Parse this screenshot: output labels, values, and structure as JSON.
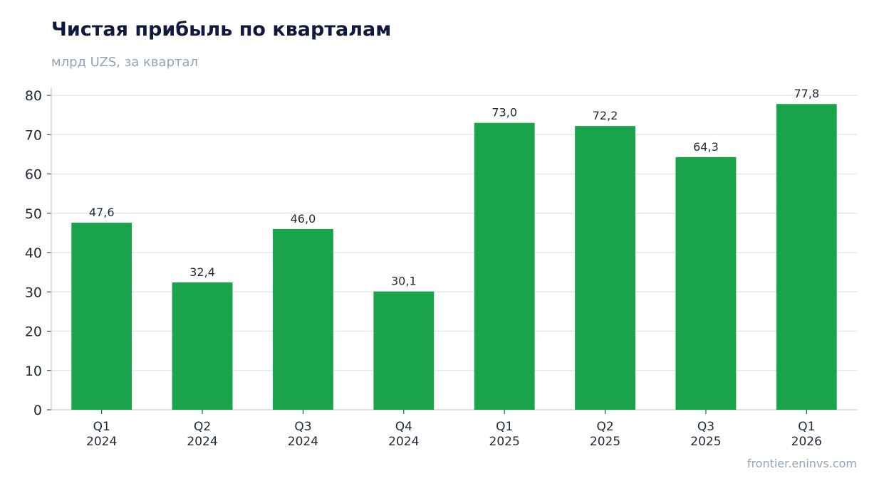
{
  "chart_data": {
    "type": "bar",
    "title": "Чистая прибыль по кварталам",
    "subtitle": "млрд UZS, за квартал",
    "categories": [
      [
        "Q1",
        "2024"
      ],
      [
        "Q2",
        "2024"
      ],
      [
        "Q3",
        "2024"
      ],
      [
        "Q4",
        "2024"
      ],
      [
        "Q1",
        "2025"
      ],
      [
        "Q2",
        "2025"
      ],
      [
        "Q3",
        "2025"
      ],
      [
        "Q1",
        "2026"
      ]
    ],
    "values": [
      47.6,
      32.4,
      46.0,
      30.1,
      73.0,
      72.2,
      64.3,
      77.8
    ],
    "value_labels": [
      "47,6",
      "32,4",
      "46,0",
      "30,1",
      "73,0",
      "72,2",
      "64,3",
      "77,8"
    ],
    "yticks": [
      0,
      10,
      20,
      30,
      40,
      50,
      60,
      70,
      80
    ],
    "ylim": [
      0,
      82
    ],
    "grid": true,
    "bar_color": "#19a34a"
  },
  "footer": {
    "source": "frontier.eninvs.com"
  }
}
